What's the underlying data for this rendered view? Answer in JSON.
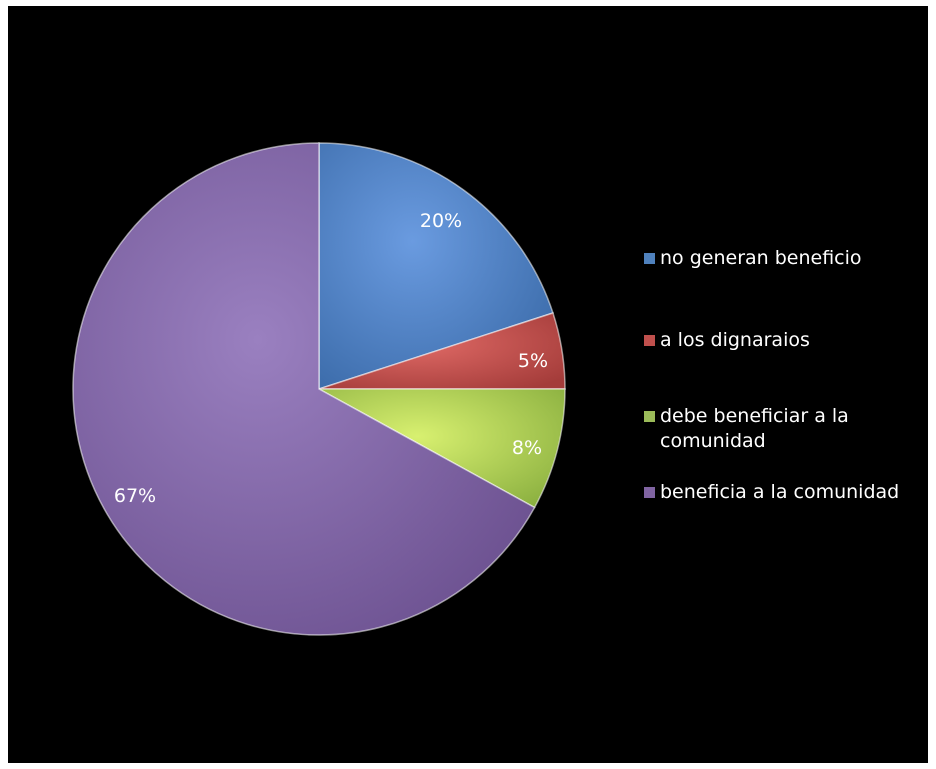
{
  "chart_data": {
    "type": "pie",
    "categories": [
      "no generan beneficio",
      "a los dignaraios",
      "debe beneficiar a la comunidad",
      "beneficia a la comunidad"
    ],
    "values": [
      20,
      5,
      8,
      67
    ],
    "labels": [
      "20%",
      "5%",
      "8%",
      "67%"
    ],
    "colors": [
      "#4f81bd",
      "#c0504d",
      "#9bbb59",
      "#8064a2"
    ],
    "legend_position": "right",
    "background": "#000000"
  },
  "legend": {
    "items": [
      {
        "label": "no generan beneficio"
      },
      {
        "label": "a los dignaraios"
      },
      {
        "label": "debe beneficiar a la comunidad"
      },
      {
        "label": "beneficia a la comunidad"
      }
    ]
  }
}
